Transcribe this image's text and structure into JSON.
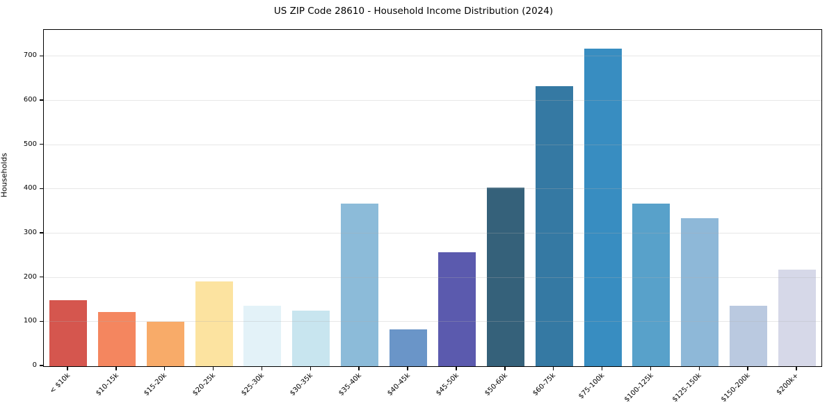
{
  "chart_data": {
    "type": "bar",
    "title": "US ZIP Code 28610 - Household Income Distribution (2024)",
    "xlabel": "",
    "ylabel": "Households",
    "categories": [
      "< $10k",
      "$10-15k",
      "$15-20k",
      "$20-25k",
      "$25-30k",
      "$30-35k",
      "$35-40k",
      "$40-45k",
      "$45-50k",
      "$50-60k",
      "$60-75k",
      "$75-100k",
      "$100-125k",
      "$125-150k",
      "$150-200k",
      "$200k+"
    ],
    "values": [
      150,
      122,
      101,
      192,
      136,
      125,
      367,
      84,
      258,
      403,
      633,
      717,
      367,
      334,
      136,
      218
    ],
    "bar_colors": [
      "#d5564e",
      "#f4865f",
      "#f8ab69",
      "#fce3a0",
      "#e3f2f8",
      "#c8e5ef",
      "#8cbbd9",
      "#6a95c8",
      "#5b5aae",
      "#35617a",
      "#3579a3",
      "#388dc1",
      "#58a1ca",
      "#8eb8d8",
      "#bac9e0",
      "#d6d8e8"
    ],
    "yticks": [
      0,
      100,
      200,
      300,
      400,
      500,
      600,
      700
    ],
    "ylim": [
      0,
      760
    ],
    "grid": "horizontal",
    "grid_color": "#b0b0b0",
    "grid_alpha": 0.3,
    "axis_color": "#000000",
    "background_color": "#ffffff",
    "legend": "none",
    "x_tick_rotation_deg": 45
  }
}
